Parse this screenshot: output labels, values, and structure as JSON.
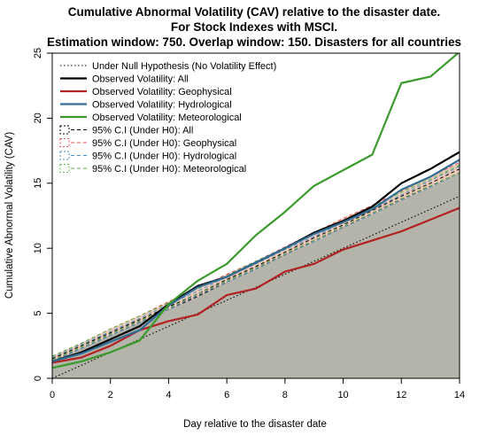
{
  "chart_data": {
    "type": "line",
    "title": [
      "Cumulative Abnormal Volatility (CAV) relative to the disaster date.",
      "For Stock Indexes with MSCI.",
      "Estimation window: 750. Overlap window: 150. Disasters for all countries"
    ],
    "xlabel": "Day relative to the disaster date",
    "ylabel": "Cumulative Abnormal Volatility (CAV)",
    "xlim": [
      0,
      14
    ],
    "ylim": [
      0,
      25
    ],
    "xticks": [
      0,
      2,
      4,
      6,
      8,
      10,
      12,
      14
    ],
    "yticks": [
      0,
      5,
      10,
      15,
      20,
      25
    ],
    "x": [
      0,
      1,
      2,
      3,
      4,
      5,
      6,
      7,
      8,
      9,
      10,
      11,
      12,
      13,
      14
    ],
    "null_hypothesis": {
      "name": "Under Null Hypothesis (No Volatility Effect)",
      "color": "#000000",
      "values": [
        0,
        1,
        2,
        3,
        4,
        5,
        6,
        7,
        8,
        9,
        10,
        11,
        12,
        13,
        14
      ]
    },
    "series": [
      {
        "name": "Observed Volatility: All",
        "color": "#000000",
        "values": [
          1.3,
          2.0,
          3.0,
          4.0,
          5.7,
          7.1,
          7.8,
          8.9,
          10.0,
          11.2,
          12.1,
          13.2,
          15.0,
          16.1,
          17.4
        ]
      },
      {
        "name": "Observed Volatility: Geophysical",
        "color": "#b22222",
        "values": [
          1.2,
          1.6,
          2.5,
          3.7,
          4.4,
          4.9,
          6.4,
          6.9,
          8.2,
          8.8,
          9.9,
          10.6,
          11.3,
          12.2,
          13.1
        ]
      },
      {
        "name": "Observed Volatility: Hydrological",
        "color": "#2e6e96",
        "values": [
          1.3,
          1.9,
          2.8,
          3.7,
          5.6,
          7.0,
          7.8,
          8.9,
          10.0,
          11.1,
          12.0,
          13.0,
          14.5,
          15.5,
          16.8
        ]
      },
      {
        "name": "Observed Volatility: Meteorological",
        "color": "#3a9a2c",
        "values": [
          0.8,
          1.3,
          2.0,
          2.9,
          5.7,
          7.5,
          8.8,
          11.0,
          12.8,
          14.8,
          16.0,
          17.2,
          22.7,
          23.2,
          25.1
        ]
      }
    ],
    "confidence_intervals": [
      {
        "name": "95% C.I (Under H0): All",
        "color": "#000000",
        "upper": [
          1.5,
          2.5,
          3.5,
          4.5,
          5.5,
          6.5,
          7.6,
          8.6,
          9.7,
          10.8,
          11.8,
          12.9,
          14.0,
          15.0,
          16.1
        ],
        "lower": [
          1.3,
          2.3,
          3.3,
          4.3,
          5.3,
          6.3,
          7.4,
          8.4,
          9.5,
          10.6,
          11.6,
          12.7,
          13.8,
          14.8,
          15.8
        ]
      },
      {
        "name": "95% C.I (Under H0): Geophysical",
        "color": "#e05050",
        "upper": [
          1.7,
          2.7,
          3.8,
          4.8,
          5.9,
          6.9,
          8.0,
          9.0,
          10.1,
          11.2,
          12.3,
          13.3,
          14.4,
          15.5,
          16.6
        ],
        "lower": [
          1.4,
          2.4,
          3.4,
          4.4,
          5.4,
          6.4,
          7.5,
          8.5,
          9.5,
          10.6,
          11.6,
          12.7,
          13.7,
          14.8,
          15.8
        ]
      },
      {
        "name": "95% C.I (Under H0): Hydrological",
        "color": "#4a90c8",
        "upper": [
          1.6,
          2.6,
          3.6,
          4.6,
          5.7,
          6.7,
          7.8,
          8.8,
          9.9,
          10.9,
          12.0,
          13.0,
          14.1,
          15.2,
          16.3
        ],
        "lower": [
          1.3,
          2.3,
          3.3,
          4.3,
          5.3,
          6.4,
          7.4,
          8.4,
          9.5,
          10.5,
          11.6,
          12.6,
          13.7,
          14.7,
          15.8
        ]
      },
      {
        "name": "95% C.I (Under H0): Meteorological",
        "color": "#5cb84a",
        "upper": [
          1.7,
          2.7,
          3.8,
          4.8,
          5.8,
          6.9,
          7.9,
          9.0,
          10.0,
          11.1,
          12.1,
          13.2,
          14.3,
          15.3,
          16.4
        ],
        "lower": [
          1.4,
          2.4,
          3.4,
          4.4,
          5.4,
          6.5,
          7.5,
          8.5,
          9.6,
          10.6,
          11.7,
          12.7,
          13.8,
          14.8,
          15.8
        ]
      }
    ],
    "shaded_region_color": "#b4b4aa",
    "band_fill_color": "#ecc9b8",
    "legend": {
      "position": "top-left",
      "items": [
        {
          "label": "Under Null Hypothesis (No Volatility Effect)",
          "style": "dotted",
          "color": "#000000"
        },
        {
          "label": "Observed Volatility: All",
          "style": "solid",
          "color": "#000000"
        },
        {
          "label": "Observed Volatility: Geophysical",
          "style": "solid",
          "color": "#b22222"
        },
        {
          "label": "Observed Volatility: Hydrological",
          "style": "solid",
          "color": "#2e6e96"
        },
        {
          "label": "Observed Volatility: Meteorological",
          "style": "solid",
          "color": "#3a9a2c"
        },
        {
          "label": "95% C.I (Under H0): All",
          "style": "dashed-box",
          "color": "#000000"
        },
        {
          "label": "95% C.I (Under H0): Geophysical",
          "style": "dashed-box",
          "color": "#e05050"
        },
        {
          "label": "95% C.I (Under H0): Hydrological",
          "style": "dashed-box",
          "color": "#4a90c8"
        },
        {
          "label": "95% C.I (Under H0): Meteorological",
          "style": "dashed-box",
          "color": "#5cb84a"
        }
      ]
    },
    "grid": false
  }
}
